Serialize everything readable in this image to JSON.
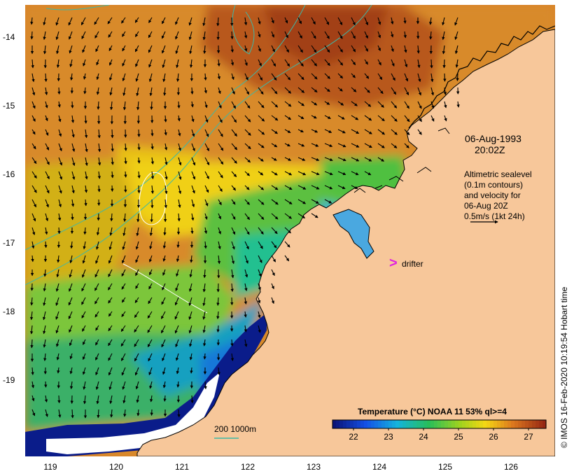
{
  "map": {
    "date": "06-Aug-1993",
    "time": "20:02Z",
    "info_lines": [
      "Altimetric sealevel",
      "(0.1m contours)",
      "and velocity for",
      "06-Aug 20Z",
      "0.5m/s (1kt 24h)"
    ],
    "drifter_symbol": ">",
    "drifter_label": "drifter",
    "bathymetry_label": "200  1000m",
    "copyright": "© IMOS 16-Feb-2020 10:19:54 Hobart time",
    "lat_labels": [
      "-14",
      "-15",
      "-16",
      "-17",
      "-18",
      "-19"
    ],
    "lon_labels": [
      "119",
      "120",
      "121",
      "122",
      "123",
      "124",
      "125",
      "126"
    ],
    "colorbar": {
      "title": "Temperature (°C) NOAA 11 53% ql>=4",
      "ticks": [
        "22",
        "23",
        "24",
        "25",
        "26",
        "27"
      ],
      "range": [
        21.4,
        27.5
      ]
    },
    "colors": {
      "land": "#f7c79a",
      "bathy_contour": "#3cb8a8",
      "sealevel_contour": "#ffffff",
      "drifter": "#e020e0",
      "velocity_arrow": "#000000"
    }
  }
}
